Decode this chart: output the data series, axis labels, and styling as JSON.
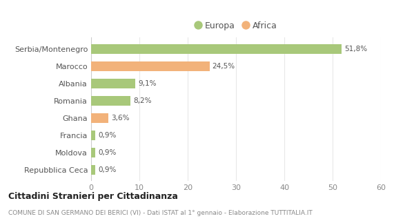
{
  "categories": [
    "Serbia/Montenegro",
    "Marocco",
    "Albania",
    "Romania",
    "Ghana",
    "Francia",
    "Moldova",
    "Repubblica Ceca"
  ],
  "values": [
    51.8,
    24.5,
    9.1,
    8.2,
    3.6,
    0.9,
    0.9,
    0.9
  ],
  "labels": [
    "51,8%",
    "24,5%",
    "9,1%",
    "8,2%",
    "3,6%",
    "0,9%",
    "0,9%",
    "0,9%"
  ],
  "colors": [
    "#a8c87a",
    "#f2b27a",
    "#a8c87a",
    "#a8c87a",
    "#f2b27a",
    "#a8c87a",
    "#a8c87a",
    "#a8c87a"
  ],
  "legend_europa_color": "#a8c87a",
  "legend_africa_color": "#f2b27a",
  "xlim": [
    0,
    60
  ],
  "xticks": [
    0,
    10,
    20,
    30,
    40,
    50,
    60
  ],
  "title": "Cittadini Stranieri per Cittadinanza",
  "subtitle": "COMUNE DI SAN GERMANO DEI BERICI (VI) - Dati ISTAT al 1° gennaio - Elaborazione TUTTITALIA.IT",
  "background_color": "#ffffff",
  "grid_color": "#e8e8e8",
  "bar_label_color": "#555555",
  "tick_label_color": "#888888",
  "title_color": "#222222",
  "subtitle_color": "#888888"
}
